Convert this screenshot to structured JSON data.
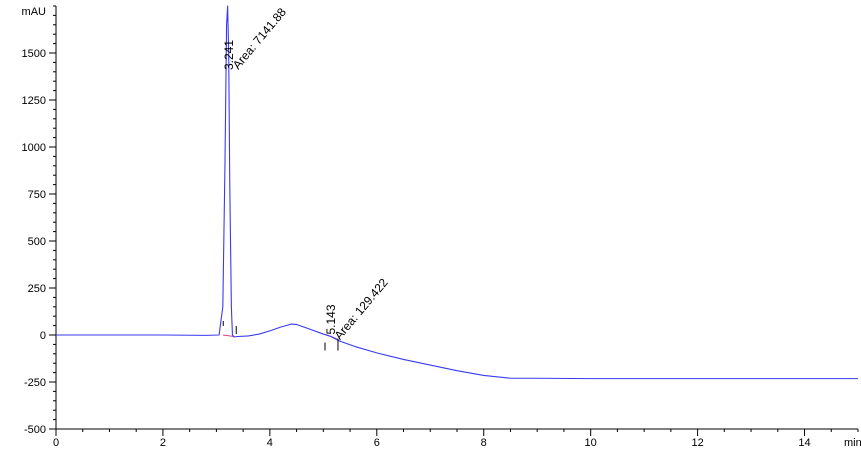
{
  "chart_data": {
    "type": "line",
    "ylabel": "mAU",
    "xlabel": "min",
    "xlim": [
      0,
      15
    ],
    "ylim": [
      -500,
      1750
    ],
    "x_ticks": [
      0,
      2,
      4,
      6,
      8,
      10,
      12,
      14
    ],
    "y_ticks": [
      -500,
      -250,
      0,
      250,
      500,
      750,
      1000,
      1250,
      1500
    ],
    "grid": false,
    "colors": {
      "trace": "#3a3af0",
      "baseline": "#e0407a",
      "axis": "#000000"
    },
    "series": [
      {
        "x": [
          0,
          0.8,
          2.0,
          2.8,
          3.05,
          3.12,
          3.16,
          3.19,
          3.21,
          3.23,
          3.25,
          3.28,
          3.3,
          3.33,
          3.4,
          3.6,
          3.8,
          4.0,
          4.2,
          4.4,
          4.5,
          4.7,
          5.0,
          5.143,
          5.3,
          5.6,
          6.0,
          6.5,
          7.0,
          7.5,
          8.0,
          8.5,
          9.0,
          10.0,
          11.0,
          12.0,
          13.0,
          14.0,
          15.0
        ],
        "y": [
          0,
          0,
          0,
          -2,
          0,
          150,
          900,
          1650,
          1750,
          1500,
          800,
          150,
          0,
          -10,
          -8,
          -5,
          5,
          22,
          42,
          58,
          56,
          36,
          5,
          -8,
          -32,
          -62,
          -95,
          -130,
          -160,
          -190,
          -215,
          -230,
          -230,
          -232,
          -232,
          -232,
          -232,
          -232,
          -232
        ]
      }
    ],
    "peaks": [
      {
        "rt_label": "3.241",
        "area_label": "Area: 7141.88",
        "x": 3.24,
        "y": 1750
      },
      {
        "rt_label": "5.143",
        "area_label": "Area: 129.422",
        "x": 5.143,
        "y": -8
      }
    ]
  }
}
